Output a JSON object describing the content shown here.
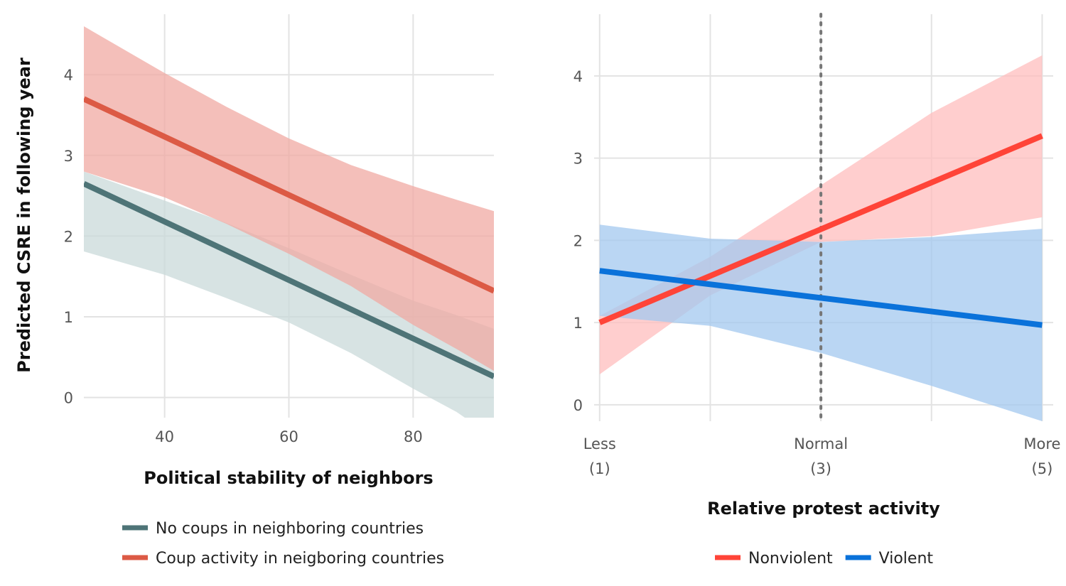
{
  "chart_data": [
    {
      "type": "line",
      "title": "",
      "xlabel": "Political stability of neighbors",
      "ylabel": "Predicted CSRE in following year",
      "xlim": [
        27,
        93
      ],
      "ylim": [
        -0.25,
        4.75
      ],
      "x_ticks": [
        40,
        60,
        80
      ],
      "x_tick_labels": [
        "40",
        "60",
        "80"
      ],
      "y_ticks": [
        0,
        1,
        2,
        3,
        4
      ],
      "y_tick_labels": [
        "0",
        "1",
        "2",
        "3",
        "4"
      ],
      "grid": true,
      "legend_position": "bottom",
      "series": [
        {
          "name": "No coups in neighboring countries",
          "color": "#4e7477",
          "band_color": "#c9d9d9",
          "x": [
            27,
            93
          ],
          "y": [
            2.65,
            0.26
          ],
          "band_x": [
            27,
            40,
            50,
            60,
            70,
            80,
            87,
            93
          ],
          "band_lower": [
            1.81,
            1.52,
            1.23,
            0.93,
            0.55,
            0.11,
            -0.18,
            -0.5
          ],
          "band_upper": [
            2.8,
            2.44,
            2.16,
            1.85,
            1.52,
            1.2,
            1.02,
            0.85
          ]
        },
        {
          "name": "Coup activity in neigboring countries",
          "color": "#dc5a45",
          "band_color": "#f0aaa3",
          "x": [
            27,
            93
          ],
          "y": [
            3.7,
            1.32
          ],
          "band_x": [
            27,
            40,
            50,
            60,
            70,
            80,
            87,
            93
          ],
          "band_lower": [
            2.8,
            2.48,
            2.15,
            1.78,
            1.38,
            0.9,
            0.6,
            0.33
          ],
          "band_upper": [
            4.6,
            4.02,
            3.6,
            3.21,
            2.88,
            2.62,
            2.45,
            2.31
          ]
        }
      ]
    },
    {
      "type": "line",
      "title": "",
      "xlabel": "Relative protest activity",
      "ylabel": "",
      "xlim": [
        0.95,
        5.1
      ],
      "ylim": [
        -0.2,
        4.75
      ],
      "x_ticks": [
        1,
        3,
        5
      ],
      "x_tick_labels": [
        [
          "Less",
          "(1)"
        ],
        [
          "Normal",
          "(3)"
        ],
        [
          "More",
          "(5)"
        ]
      ],
      "x_grid": [
        1,
        2,
        3,
        4,
        5
      ],
      "y_ticks": [
        0,
        1,
        2,
        3,
        4
      ],
      "y_tick_labels": [
        "0",
        "1",
        "2",
        "3",
        "4"
      ],
      "grid": true,
      "reference_line_x": 3,
      "legend_position": "bottom",
      "series": [
        {
          "name": "Nonviolent",
          "color": "#ff4438",
          "band_color": "#ffbdbd",
          "x": [
            1,
            5
          ],
          "y": [
            1.0,
            3.27
          ],
          "band_x": [
            1,
            2,
            3,
            4,
            5
          ],
          "band_lower": [
            0.37,
            1.33,
            1.98,
            2.05,
            2.28
          ],
          "band_upper": [
            1.08,
            1.8,
            2.67,
            3.55,
            4.25
          ]
        },
        {
          "name": "Violent",
          "color": "#0a72da",
          "band_color": "#a3c8ef",
          "x": [
            1,
            5
          ],
          "y": [
            1.63,
            0.97
          ],
          "band_x": [
            1,
            2,
            3,
            4,
            5
          ],
          "band_lower": [
            1.08,
            0.96,
            0.63,
            0.23,
            -0.2
          ],
          "band_upper": [
            2.19,
            2.02,
            1.98,
            2.04,
            2.14
          ]
        }
      ]
    }
  ]
}
